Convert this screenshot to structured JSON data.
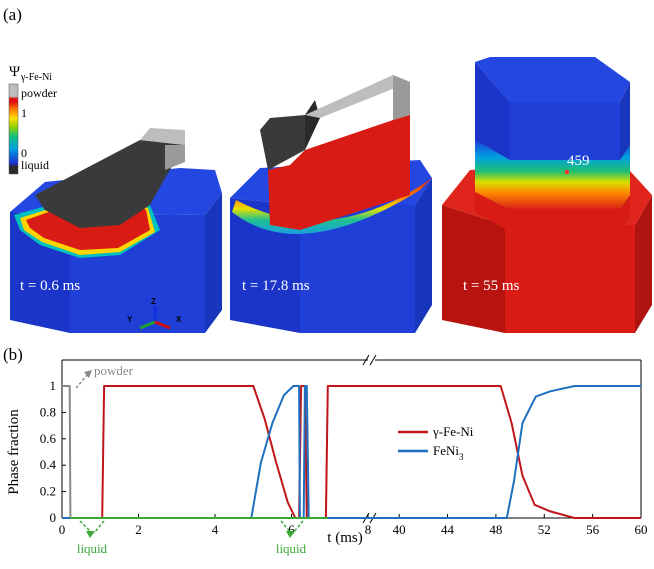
{
  "panel_a": {
    "label": "(a)",
    "colorbar": {
      "title_symbol": "Ψ",
      "title_sub": "γ-Fe-Ni",
      "labels": [
        "powder",
        "1",
        "0",
        "liquid"
      ]
    },
    "snapshots": [
      {
        "time_label": "t = 0.6 ms"
      },
      {
        "time_label": "t = 17.8 ms"
      },
      {
        "time_label": "t = 55 ms",
        "point_label": "459"
      }
    ],
    "axes_triad": {
      "z": "Z",
      "y": "Y",
      "x": "X"
    },
    "colors": {
      "blue": "#1f3fd6",
      "red": "#d81b14",
      "dark": "#333333",
      "powder": "#b4b4b4"
    }
  },
  "panel_b": {
    "label": "(b)",
    "annotations": {
      "powder": "powder",
      "liquid_1": "liquid",
      "liquid_2": "liquid"
    }
  },
  "chart_data": {
    "type": "line",
    "title": "",
    "xlabel": "t (ms)",
    "ylabel": "Phase fraction",
    "ylim": [
      0,
      1
    ],
    "yticks": [
      "0",
      "0.2",
      "0.4",
      "0.6",
      "0.8",
      "1"
    ],
    "axis_break": true,
    "segments": [
      {
        "xlim": [
          0,
          8
        ],
        "xticks": [
          "0",
          "2",
          "4",
          "6",
          "8"
        ]
      },
      {
        "xlim": [
          38,
          60
        ],
        "xticks": [
          "40",
          "44",
          "48",
          "52",
          "56",
          "60"
        ]
      }
    ],
    "legend": {
      "placement": "center-right",
      "entries": [
        "γ-Fe-Ni",
        "FeNi3"
      ]
    },
    "series": [
      {
        "name": "γ-Fe-Ni",
        "color": "#c0151b",
        "points": [
          [
            0,
            0
          ],
          [
            1.05,
            0
          ],
          [
            1.1,
            1
          ],
          [
            5,
            1
          ],
          [
            5.3,
            0.75
          ],
          [
            5.6,
            0.42
          ],
          [
            5.9,
            0.12
          ],
          [
            6.1,
            0
          ],
          [
            6.2,
            0
          ],
          [
            6.25,
            1
          ],
          [
            6.35,
            1
          ],
          [
            6.4,
            0
          ],
          [
            6.9,
            0
          ],
          [
            6.95,
            1
          ],
          [
            8.6,
            1
          ],
          [
            39,
            1
          ],
          [
            48.4,
            1
          ],
          [
            49.3,
            0.72
          ],
          [
            50.2,
            0.32
          ],
          [
            51.2,
            0.1
          ],
          [
            52.5,
            0.05
          ],
          [
            54.5,
            0
          ],
          [
            60,
            0
          ]
        ]
      },
      {
        "name": "FeNi3",
        "color": "#1f6fbf",
        "points": [
          [
            0,
            0
          ],
          [
            4.95,
            0
          ],
          [
            5.2,
            0.42
          ],
          [
            5.5,
            0.72
          ],
          [
            5.8,
            0.93
          ],
          [
            6.05,
            1
          ],
          [
            6.2,
            1
          ],
          [
            6.22,
            0
          ],
          [
            6.32,
            0
          ],
          [
            6.35,
            1
          ],
          [
            6.4,
            1
          ],
          [
            6.45,
            0
          ],
          [
            8.6,
            0
          ],
          [
            39,
            0
          ],
          [
            48.9,
            0
          ],
          [
            49.5,
            0.28
          ],
          [
            50.2,
            0.72
          ],
          [
            51.3,
            0.92
          ],
          [
            52.5,
            0.96
          ],
          [
            54.5,
            1
          ],
          [
            60,
            1
          ]
        ]
      },
      {
        "name": "powder",
        "color": "#888888",
        "points": [
          [
            0,
            1
          ],
          [
            0.2,
            1
          ],
          [
            0.22,
            0
          ]
        ]
      },
      {
        "name": "liquid",
        "color": "#3aa834",
        "points": [
          [
            0.22,
            0
          ],
          [
            1.1,
            0
          ],
          [
            6.2,
            0
          ],
          [
            6.95,
            0
          ]
        ]
      }
    ]
  }
}
